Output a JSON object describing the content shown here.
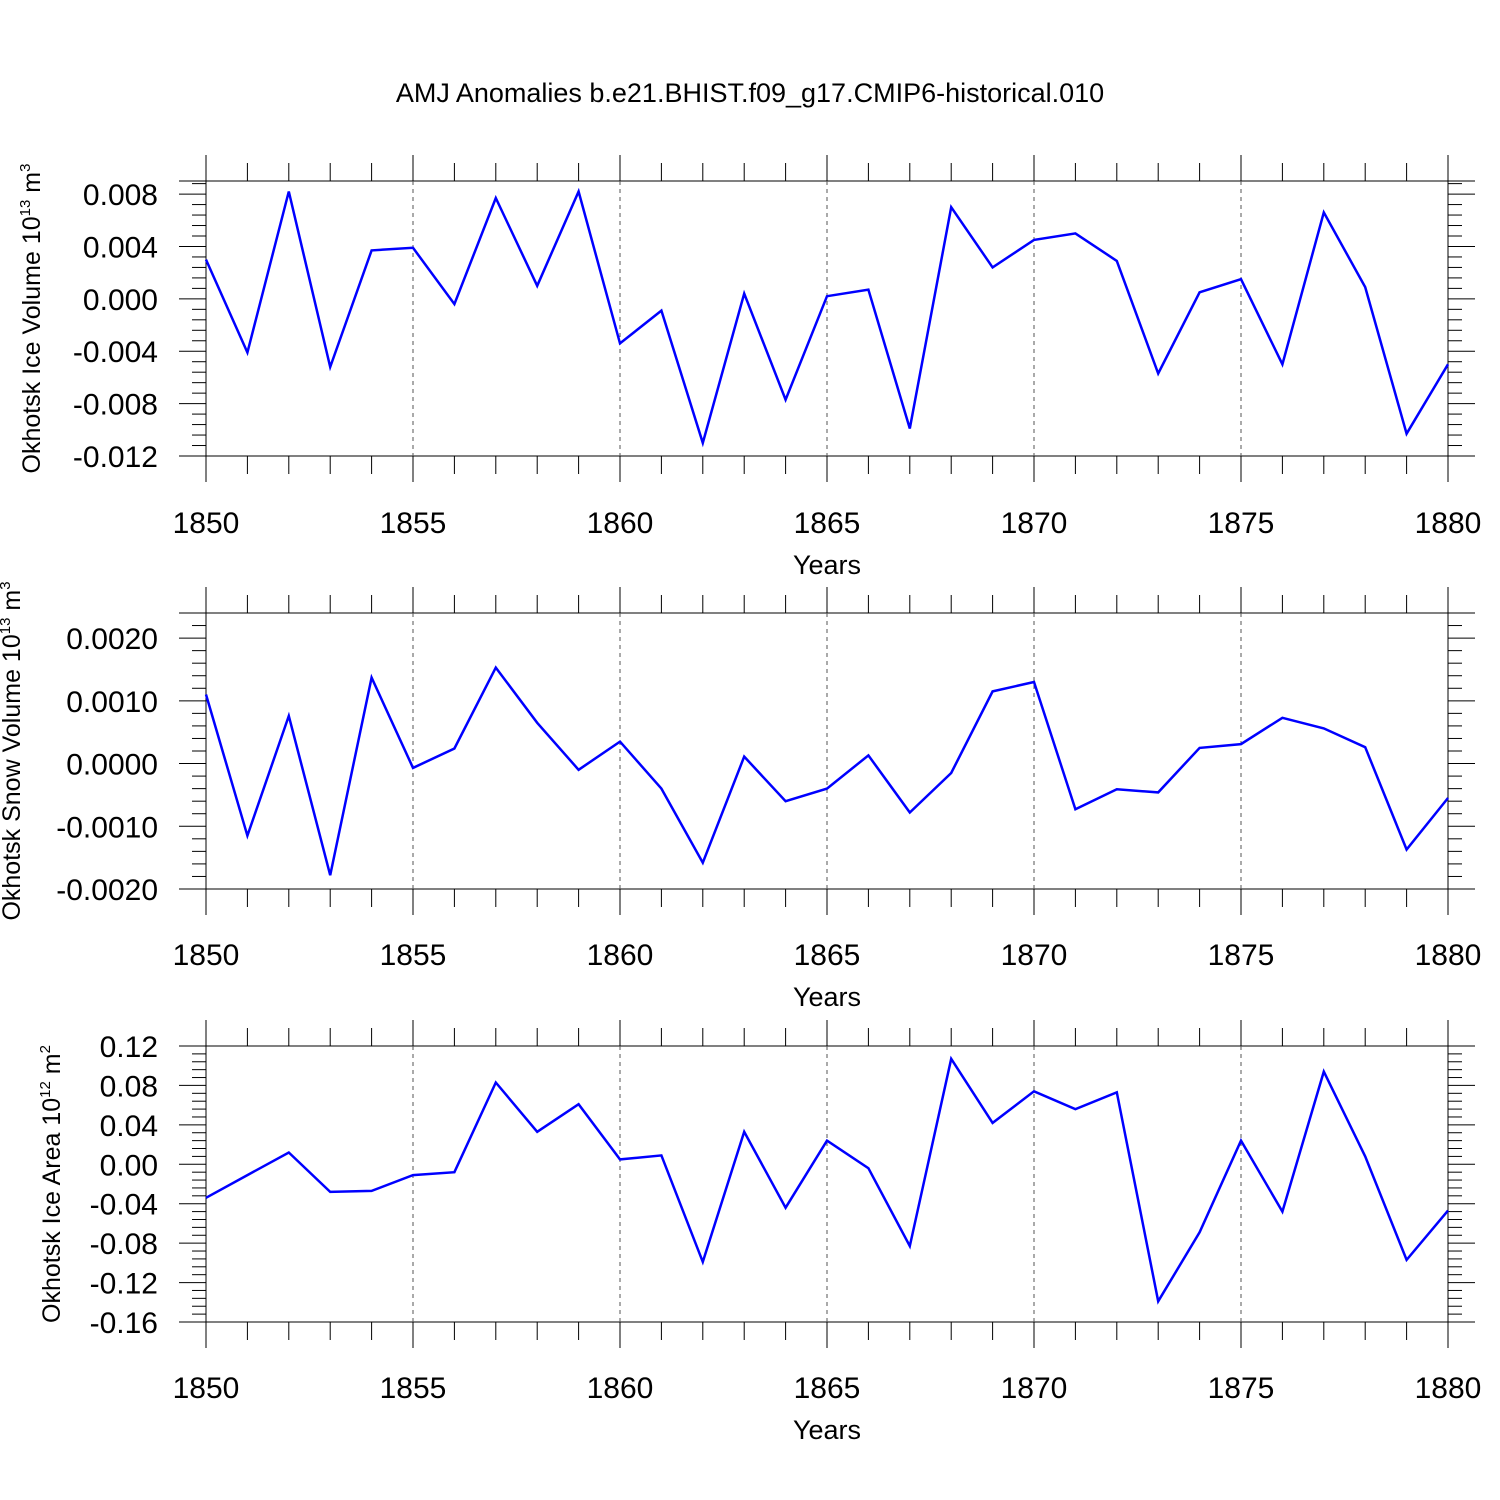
{
  "title": "AMJ Anomalies b.e21.BHIST.f09_g17.CMIP6-historical.010",
  "line_color": "#0000ff",
  "chart_data": [
    {
      "type": "line",
      "title": "",
      "ylabel": "Okhotsk Ice Volume 10",
      "ylabel_exp": "13",
      "ylabel_unit": " m",
      "ylabel_unit_exp": "3",
      "xlabel": "Years",
      "xlim": [
        1850,
        1880
      ],
      "ylim": [
        -0.012,
        0.009
      ],
      "xticks": [
        1850,
        1855,
        1860,
        1865,
        1870,
        1875,
        1880
      ],
      "yticks": [
        -0.012,
        -0.008,
        -0.004,
        0.0,
        0.004,
        0.008
      ],
      "ytick_labels": [
        "-0.012",
        "-0.008",
        "-0.004",
        "0.000",
        "0.004",
        "0.008"
      ],
      "grid": "vertical dashed at major x ticks",
      "x": [
        1850,
        1851,
        1852,
        1853,
        1854,
        1855,
        1856,
        1857,
        1858,
        1859,
        1860,
        1861,
        1862,
        1863,
        1864,
        1865,
        1866,
        1867,
        1868,
        1869,
        1870,
        1871,
        1872,
        1873,
        1874,
        1875,
        1876,
        1877,
        1878,
        1879,
        1880
      ],
      "series": [
        {
          "values": [
            0.003,
            -0.0041,
            0.0082,
            -0.0052,
            0.0037,
            0.0039,
            -0.0004,
            0.0077,
            0.001,
            0.0082,
            -0.0034,
            -0.0009,
            -0.011,
            0.0004,
            -0.0077,
            0.0002,
            0.0007,
            -0.0099,
            0.007,
            0.0024,
            0.0045,
            0.005,
            0.0029,
            -0.0057,
            0.0005,
            0.0015,
            -0.005,
            0.0066,
            0.0009,
            -0.0103,
            -0.005
          ]
        }
      ]
    },
    {
      "type": "line",
      "title": "",
      "ylabel": "Okhotsk Snow Volume 10",
      "ylabel_exp": "13",
      "ylabel_unit": " m",
      "ylabel_unit_exp": "3",
      "xlabel": "Years",
      "xlim": [
        1850,
        1880
      ],
      "ylim": [
        -0.002,
        0.0024
      ],
      "xticks": [
        1850,
        1855,
        1860,
        1865,
        1870,
        1875,
        1880
      ],
      "yticks": [
        -0.002,
        -0.001,
        0.0,
        0.001,
        0.002
      ],
      "ytick_labels": [
        "-0.0020",
        "-0.0010",
        "0.0000",
        "0.0010",
        "0.0020"
      ],
      "grid": "vertical dashed at major x ticks",
      "x": [
        1850,
        1851,
        1852,
        1853,
        1854,
        1855,
        1856,
        1857,
        1858,
        1859,
        1860,
        1861,
        1862,
        1863,
        1864,
        1865,
        1866,
        1867,
        1868,
        1869,
        1870,
        1871,
        1872,
        1873,
        1874,
        1875,
        1876,
        1877,
        1878,
        1879,
        1880
      ],
      "series": [
        {
          "values": [
            0.0011,
            -0.00115,
            0.00076,
            -0.00178,
            0.00137,
            -7e-05,
            0.00024,
            0.00153,
            0.00065,
            -0.0001,
            0.00035,
            -0.0004,
            -0.00158,
            0.00011,
            -0.0006,
            -0.0004,
            0.00013,
            -0.00078,
            -0.00015,
            0.00115,
            0.0013,
            -0.00073,
            -0.00041,
            -0.00046,
            0.00025,
            0.00031,
            0.00073,
            0.00056,
            0.00026,
            -0.00137,
            -0.00055
          ]
        }
      ]
    },
    {
      "type": "line",
      "title": "",
      "ylabel": "Okhotsk Ice Area 10",
      "ylabel_exp": "12",
      "ylabel_unit": " m",
      "ylabel_unit_exp": "2",
      "xlabel": "Years",
      "xlim": [
        1850,
        1880
      ],
      "ylim": [
        -0.16,
        0.12
      ],
      "xticks": [
        1850,
        1855,
        1860,
        1865,
        1870,
        1875,
        1880
      ],
      "yticks": [
        -0.16,
        -0.12,
        -0.08,
        -0.04,
        0.0,
        0.04,
        0.08,
        0.12
      ],
      "ytick_labels": [
        "-0.16",
        "-0.12",
        "-0.08",
        "-0.04",
        "0.00",
        "0.04",
        "0.08",
        "0.12"
      ],
      "grid": "vertical dashed at major x ticks",
      "x": [
        1850,
        1851,
        1852,
        1853,
        1854,
        1855,
        1856,
        1857,
        1858,
        1859,
        1860,
        1861,
        1862,
        1863,
        1864,
        1865,
        1866,
        1867,
        1868,
        1869,
        1870,
        1871,
        1872,
        1873,
        1874,
        1875,
        1876,
        1877,
        1878,
        1879,
        1880
      ],
      "series": [
        {
          "values": [
            -0.034,
            -0.011,
            0.012,
            -0.028,
            -0.027,
            -0.011,
            -0.008,
            0.083,
            0.033,
            0.061,
            0.005,
            0.009,
            -0.099,
            0.033,
            -0.044,
            0.024,
            -0.004,
            -0.083,
            0.107,
            0.042,
            0.074,
            0.056,
            0.073,
            -0.139,
            -0.069,
            0.024,
            -0.048,
            0.094,
            0.008,
            -0.097,
            -0.047
          ]
        }
      ]
    }
  ]
}
